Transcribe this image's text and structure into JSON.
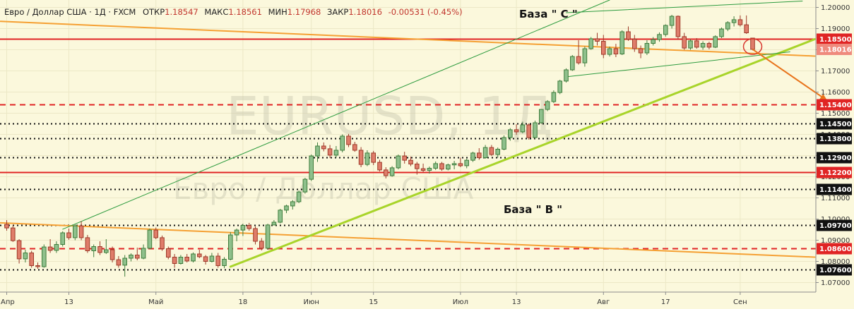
{
  "header": {
    "symbol": "Евро / Доллар США · 1Д · FXCM",
    "open_label": "ОТКР",
    "open": "1.18547",
    "high_label": "МАКС",
    "high": "1.18561",
    "low_label": "МИН",
    "low": "1.17968",
    "close_label": "ЗАКР",
    "close": "1.18016",
    "change": "-0.00531 (-0.45%)"
  },
  "watermark": {
    "line1": "EURUSD, 1Д",
    "line2": "Евро / Доллар США"
  },
  "annotations": {
    "base_c": "База \" C \"",
    "base_b": "База \" B \""
  },
  "chart_data": {
    "type": "candlestick",
    "ylim": [
      1.0655,
      1.2035
    ],
    "price_ticks": [
      "1.20000",
      "1.19000",
      "1.18000",
      "1.17000",
      "1.16000",
      "1.15000",
      "1.14000",
      "1.13000",
      "1.12000",
      "1.11000",
      "1.10000",
      "1.09000",
      "1.08000",
      "1.07000"
    ],
    "x_ticks": [
      {
        "label": "Апр",
        "index": 0
      },
      {
        "label": "13",
        "index": 10
      },
      {
        "label": "Май",
        "index": 24
      },
      {
        "label": "18",
        "index": 38
      },
      {
        "label": "Июн",
        "index": 49
      },
      {
        "label": "15",
        "index": 59
      },
      {
        "label": "Июл",
        "index": 73
      },
      {
        "label": "13",
        "index": 82
      },
      {
        "label": "Авг",
        "index": 96
      },
      {
        "label": "17",
        "index": 106
      },
      {
        "label": "Сен",
        "index": 118
      }
    ],
    "candles": [
      [
        1.0975,
        1.0995,
        1.0945,
        1.0958
      ],
      [
        1.0958,
        1.097,
        1.0892,
        1.0898
      ],
      [
        1.0898,
        1.0905,
        1.079,
        1.0812
      ],
      [
        1.0812,
        1.0855,
        1.0795,
        1.084
      ],
      [
        1.084,
        1.085,
        1.077,
        1.078
      ],
      [
        1.078,
        1.0795,
        1.0765,
        1.0775
      ],
      [
        1.0775,
        1.088,
        1.077,
        1.0868
      ],
      [
        1.0868,
        1.0905,
        1.084,
        1.0852
      ],
      [
        1.0852,
        1.0895,
        1.084,
        1.088
      ],
      [
        1.088,
        1.0942,
        1.087,
        1.0935
      ],
      [
        1.0935,
        1.0955,
        1.0902,
        1.0912
      ],
      [
        1.0912,
        1.0975,
        1.09,
        1.0968
      ],
      [
        1.0968,
        1.099,
        1.09,
        1.0912
      ],
      [
        1.0912,
        1.0925,
        1.084,
        1.085
      ],
      [
        1.085,
        1.088,
        1.082,
        1.087
      ],
      [
        1.087,
        1.0895,
        1.083,
        1.0842
      ],
      [
        1.0842,
        1.0905,
        1.0835,
        1.0855
      ],
      [
        1.0855,
        1.087,
        1.0795,
        1.0808
      ],
      [
        1.0808,
        1.0825,
        1.077,
        1.0782
      ],
      [
        1.0782,
        1.083,
        1.0728,
        1.0815
      ],
      [
        1.0815,
        1.0838,
        1.08,
        1.083
      ],
      [
        1.083,
        1.0865,
        1.0805,
        1.0815
      ],
      [
        1.0815,
        1.088,
        1.081,
        1.0862
      ],
      [
        1.0862,
        1.0955,
        1.0858,
        1.0948
      ],
      [
        1.0948,
        1.096,
        1.0905,
        1.0912
      ],
      [
        1.0912,
        1.0922,
        1.085,
        1.086
      ],
      [
        1.086,
        1.087,
        1.081,
        1.082
      ],
      [
        1.082,
        1.0835,
        1.077,
        1.079
      ],
      [
        1.079,
        1.083,
        1.0785,
        1.082
      ],
      [
        1.082,
        1.0835,
        1.0795,
        1.0802
      ],
      [
        1.0802,
        1.0842,
        1.0795,
        1.0835
      ],
      [
        1.0835,
        1.0855,
        1.0815,
        1.0822
      ],
      [
        1.0822,
        1.083,
        1.0785,
        1.08
      ],
      [
        1.08,
        1.084,
        1.0795,
        1.0825
      ],
      [
        1.0825,
        1.084,
        1.077,
        1.078
      ],
      [
        1.078,
        1.082,
        1.0768,
        1.081
      ],
      [
        1.081,
        1.0938,
        1.0805,
        1.0925
      ],
      [
        1.0925,
        1.0955,
        1.0895,
        1.0948
      ],
      [
        1.0948,
        1.0978,
        1.092,
        1.097
      ],
      [
        1.097,
        1.0982,
        1.0945,
        1.0955
      ],
      [
        1.0955,
        1.0965,
        1.088,
        1.0895
      ],
      [
        1.0895,
        1.091,
        1.0852,
        1.0862
      ],
      [
        1.0862,
        1.0978,
        1.0855,
        1.0972
      ],
      [
        1.0972,
        1.0995,
        1.0975,
        1.0985
      ],
      [
        1.0985,
        1.1048,
        1.098,
        1.1042
      ],
      [
        1.1042,
        1.1068,
        1.1028,
        1.1062
      ],
      [
        1.1062,
        1.109,
        1.1045,
        1.1082
      ],
      [
        1.1082,
        1.1135,
        1.1075,
        1.1128
      ],
      [
        1.1128,
        1.1195,
        1.112,
        1.1188
      ],
      [
        1.1188,
        1.1305,
        1.118,
        1.1298
      ],
      [
        1.1298,
        1.1362,
        1.127,
        1.1345
      ],
      [
        1.1345,
        1.1362,
        1.132,
        1.1332
      ],
      [
        1.1332,
        1.135,
        1.1288,
        1.1302
      ],
      [
        1.1302,
        1.1345,
        1.129,
        1.1325
      ],
      [
        1.1325,
        1.14,
        1.1315,
        1.1392
      ],
      [
        1.1392,
        1.1402,
        1.134,
        1.1352
      ],
      [
        1.1352,
        1.1365,
        1.1318,
        1.1325
      ],
      [
        1.1325,
        1.134,
        1.1245,
        1.1258
      ],
      [
        1.1258,
        1.1325,
        1.125,
        1.1312
      ],
      [
        1.1312,
        1.1322,
        1.1255,
        1.1268
      ],
      [
        1.1268,
        1.128,
        1.1225,
        1.1232
      ],
      [
        1.1232,
        1.1245,
        1.1192,
        1.1205
      ],
      [
        1.1205,
        1.125,
        1.12,
        1.1242
      ],
      [
        1.1242,
        1.1305,
        1.1235,
        1.1298
      ],
      [
        1.1298,
        1.1318,
        1.1262,
        1.1278
      ],
      [
        1.1278,
        1.1295,
        1.125,
        1.126
      ],
      [
        1.126,
        1.127,
        1.121,
        1.1238
      ],
      [
        1.1238,
        1.1262,
        1.1222,
        1.123
      ],
      [
        1.123,
        1.1248,
        1.1215,
        1.124
      ],
      [
        1.124,
        1.1272,
        1.1232,
        1.1262
      ],
      [
        1.1262,
        1.127,
        1.1228,
        1.1236
      ],
      [
        1.1236,
        1.1262,
        1.123,
        1.1256
      ],
      [
        1.1256,
        1.1275,
        1.1235,
        1.1262
      ],
      [
        1.1262,
        1.129,
        1.1245,
        1.1252
      ],
      [
        1.1252,
        1.1285,
        1.124,
        1.1278
      ],
      [
        1.1278,
        1.1318,
        1.127,
        1.1312
      ],
      [
        1.1312,
        1.1335,
        1.128,
        1.129
      ],
      [
        1.129,
        1.135,
        1.1285,
        1.1338
      ],
      [
        1.1338,
        1.135,
        1.1298,
        1.1305
      ],
      [
        1.1305,
        1.1338,
        1.129,
        1.133
      ],
      [
        1.133,
        1.1395,
        1.1325,
        1.1385
      ],
      [
        1.1385,
        1.143,
        1.137,
        1.1422
      ],
      [
        1.1422,
        1.1448,
        1.1398,
        1.1412
      ],
      [
        1.1412,
        1.146,
        1.1405,
        1.1445
      ],
      [
        1.1445,
        1.1452,
        1.1375,
        1.1385
      ],
      [
        1.1385,
        1.1465,
        1.138,
        1.1455
      ],
      [
        1.1455,
        1.152,
        1.145,
        1.1518
      ],
      [
        1.1518,
        1.1562,
        1.151,
        1.1555
      ],
      [
        1.1555,
        1.1608,
        1.1548,
        1.1598
      ],
      [
        1.1598,
        1.1658,
        1.159,
        1.1652
      ],
      [
        1.1652,
        1.1712,
        1.1645,
        1.1705
      ],
      [
        1.1705,
        1.1775,
        1.17,
        1.1768
      ],
      [
        1.1768,
        1.1845,
        1.173,
        1.1738
      ],
      [
        1.1738,
        1.1815,
        1.172,
        1.1805
      ],
      [
        1.1805,
        1.186,
        1.18,
        1.1852
      ],
      [
        1.1852,
        1.188,
        1.182,
        1.184
      ],
      [
        1.184,
        1.187,
        1.176,
        1.1778
      ],
      [
        1.1778,
        1.1815,
        1.1768,
        1.1805
      ],
      [
        1.1805,
        1.1828,
        1.1765,
        1.178
      ],
      [
        1.178,
        1.1892,
        1.1775,
        1.1885
      ],
      [
        1.1885,
        1.191,
        1.1842,
        1.185
      ],
      [
        1.185,
        1.187,
        1.179,
        1.1805
      ],
      [
        1.1805,
        1.182,
        1.176,
        1.1785
      ],
      [
        1.1785,
        1.1845,
        1.1775,
        1.183
      ],
      [
        1.183,
        1.186,
        1.182,
        1.1848
      ],
      [
        1.1848,
        1.1882,
        1.1838,
        1.1872
      ],
      [
        1.1872,
        1.192,
        1.1862,
        1.1915
      ],
      [
        1.1915,
        1.1965,
        1.19,
        1.1958
      ],
      [
        1.1958,
        1.1962,
        1.1848,
        1.1862
      ],
      [
        1.1862,
        1.188,
        1.18,
        1.1808
      ],
      [
        1.1808,
        1.185,
        1.18,
        1.1842
      ],
      [
        1.1842,
        1.1855,
        1.1805,
        1.1812
      ],
      [
        1.1812,
        1.184,
        1.18,
        1.183
      ],
      [
        1.183,
        1.1838,
        1.1802,
        1.1812
      ],
      [
        1.1812,
        1.1868,
        1.1808,
        1.1862
      ],
      [
        1.1862,
        1.1905,
        1.1855,
        1.1898
      ],
      [
        1.1898,
        1.1935,
        1.1888,
        1.1928
      ],
      [
        1.1928,
        1.1958,
        1.191,
        1.1942
      ],
      [
        1.1942,
        1.1962,
        1.191,
        1.1918
      ],
      [
        1.1918,
        1.1962,
        1.1875,
        1.188
      ],
      [
        1.1855,
        1.1856,
        1.1797,
        1.1802
      ]
    ],
    "levels": [
      {
        "price": 1.185,
        "label": "1.18500",
        "style": "solid-red"
      },
      {
        "price": 1.154,
        "label": "1.15400",
        "style": "dashed-red"
      },
      {
        "price": 1.145,
        "label": "1.14500",
        "style": "dotted-black"
      },
      {
        "price": 1.138,
        "label": "1.13800",
        "style": "dotted-black"
      },
      {
        "price": 1.129,
        "label": "1.12900",
        "style": "dotted-black"
      },
      {
        "price": 1.122,
        "label": "1.12200",
        "style": "solid-red"
      },
      {
        "price": 1.114,
        "label": "1.11400",
        "style": "dotted-black"
      },
      {
        "price": 1.097,
        "label": "1.09700",
        "style": "dotted-black"
      },
      {
        "price": 1.086,
        "label": "1.08600",
        "style": "dashed-red"
      },
      {
        "price": 1.076,
        "label": "1.07600",
        "style": "dotted-black"
      }
    ],
    "current_price": {
      "price": 1.18016,
      "label": "1.18016"
    },
    "trendlines": [
      {
        "name": "orange-upper",
        "color": "#f5a033",
        "width": 2,
        "p1": [
          -1,
          1.1934
        ],
        "p2": [
          130,
          1.177
        ]
      },
      {
        "name": "orange-lower",
        "color": "#f5a033",
        "width": 2,
        "p1": [
          -1,
          1.0982
        ],
        "p2": [
          130,
          1.082
        ]
      },
      {
        "name": "yellowgreen-support",
        "color": "#a8d42a",
        "width": 3,
        "p1": [
          36,
          1.0775
        ],
        "p2": [
          130,
          1.185
        ]
      },
      {
        "name": "green-channel-lower",
        "color": "#2c9b3e",
        "width": 1,
        "p1": [
          9,
          1.0952
        ],
        "p2": [
          97,
          1.2035
        ]
      },
      {
        "name": "green-channel-c-top",
        "color": "#2c9b3e",
        "width": 1,
        "p1": [
          90,
          1.1975
        ],
        "p2": [
          128,
          1.203
        ]
      },
      {
        "name": "green-channel-c-bottom",
        "color": "#2c9b3e",
        "width": 1,
        "p1": [
          90,
          1.1672
        ],
        "p2": [
          126,
          1.179
        ]
      }
    ],
    "arrow": {
      "from": [
        120,
        1.1802
      ],
      "to": [
        132,
        1.156
      ],
      "color": "#e8741c"
    },
    "circle": {
      "index": 120,
      "price": 1.1815,
      "rx": 13,
      "ry": 11,
      "color": "#d9372e"
    }
  }
}
